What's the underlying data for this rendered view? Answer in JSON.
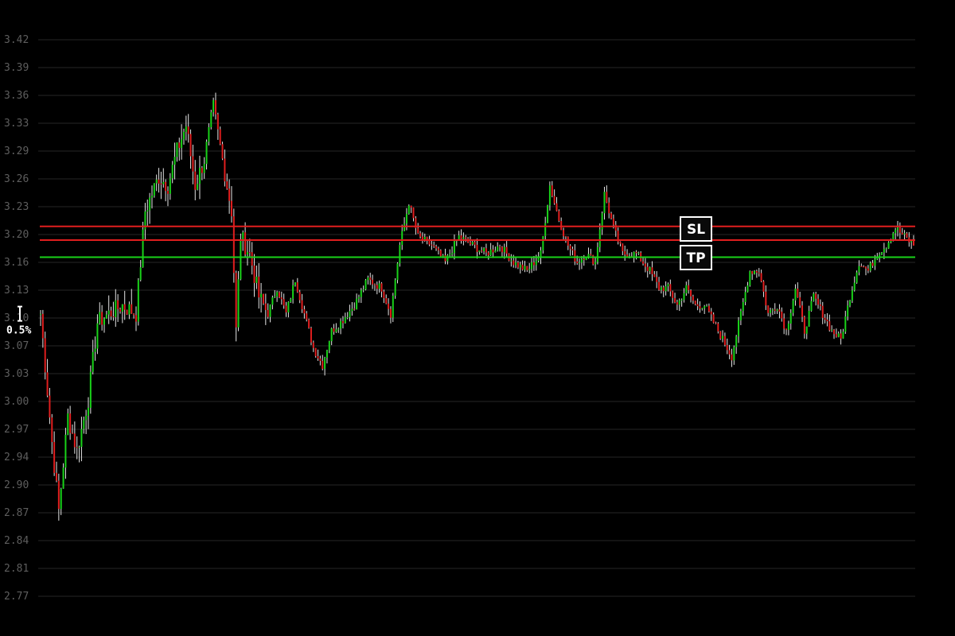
{
  "chart_data": {
    "type": "candlestick",
    "ylim": [
      2.75,
      3.44
    ],
    "y_ticks": [
      "3.42",
      "3.39",
      "3.36",
      "3.33",
      "3.29",
      "3.26",
      "3.23",
      "3.20",
      "3.16",
      "3.13",
      "3.10",
      "3.07",
      "3.03",
      "3.00",
      "2.97",
      "2.94",
      "2.90",
      "2.87",
      "2.84",
      "2.81",
      "2.77"
    ],
    "grid": true,
    "colors": {
      "up": "#19d219",
      "down": "#e01e1e",
      "wick": "#e6e6e6",
      "background": "#000000",
      "grid": "#262626"
    },
    "anchors": [
      {
        "i": 0,
        "v": 3.1
      },
      {
        "i": 5,
        "v": 2.95
      },
      {
        "i": 8,
        "v": 2.87
      },
      {
        "i": 12,
        "v": 2.98
      },
      {
        "i": 16,
        "v": 2.94
      },
      {
        "i": 21,
        "v": 3.0
      },
      {
        "i": 25,
        "v": 3.09
      },
      {
        "i": 30,
        "v": 3.1
      },
      {
        "i": 36,
        "v": 3.11
      },
      {
        "i": 42,
        "v": 3.1
      },
      {
        "i": 46,
        "v": 3.22
      },
      {
        "i": 52,
        "v": 3.26
      },
      {
        "i": 56,
        "v": 3.25
      },
      {
        "i": 60,
        "v": 3.29
      },
      {
        "i": 64,
        "v": 3.32
      },
      {
        "i": 68,
        "v": 3.25
      },
      {
        "i": 72,
        "v": 3.28
      },
      {
        "i": 76,
        "v": 3.34
      },
      {
        "i": 80,
        "v": 3.28
      },
      {
        "i": 84,
        "v": 3.22
      },
      {
        "i": 86,
        "v": 3.08
      },
      {
        "i": 88,
        "v": 3.19
      },
      {
        "i": 92,
        "v": 3.17
      },
      {
        "i": 96,
        "v": 3.12
      },
      {
        "i": 100,
        "v": 3.1
      },
      {
        "i": 104,
        "v": 3.13
      },
      {
        "i": 108,
        "v": 3.1
      },
      {
        "i": 112,
        "v": 3.14
      },
      {
        "i": 116,
        "v": 3.1
      },
      {
        "i": 120,
        "v": 3.06
      },
      {
        "i": 124,
        "v": 3.04
      },
      {
        "i": 128,
        "v": 3.08
      },
      {
        "i": 132,
        "v": 3.09
      },
      {
        "i": 138,
        "v": 3.11
      },
      {
        "i": 144,
        "v": 3.14
      },
      {
        "i": 150,
        "v": 3.13
      },
      {
        "i": 154,
        "v": 3.1
      },
      {
        "i": 158,
        "v": 3.18
      },
      {
        "i": 162,
        "v": 3.23
      },
      {
        "i": 166,
        "v": 3.19
      },
      {
        "i": 172,
        "v": 3.18
      },
      {
        "i": 178,
        "v": 3.16
      },
      {
        "i": 184,
        "v": 3.19
      },
      {
        "i": 190,
        "v": 3.18
      },
      {
        "i": 196,
        "v": 3.17
      },
      {
        "i": 202,
        "v": 3.18
      },
      {
        "i": 208,
        "v": 3.16
      },
      {
        "i": 214,
        "v": 3.15
      },
      {
        "i": 220,
        "v": 3.17
      },
      {
        "i": 224,
        "v": 3.25
      },
      {
        "i": 228,
        "v": 3.21
      },
      {
        "i": 232,
        "v": 3.18
      },
      {
        "i": 236,
        "v": 3.16
      },
      {
        "i": 240,
        "v": 3.17
      },
      {
        "i": 244,
        "v": 3.16
      },
      {
        "i": 248,
        "v": 3.24
      },
      {
        "i": 252,
        "v": 3.2
      },
      {
        "i": 256,
        "v": 3.17
      },
      {
        "i": 262,
        "v": 3.17
      },
      {
        "i": 268,
        "v": 3.15
      },
      {
        "i": 272,
        "v": 3.13
      },
      {
        "i": 276,
        "v": 3.13
      },
      {
        "i": 280,
        "v": 3.11
      },
      {
        "i": 284,
        "v": 3.13
      },
      {
        "i": 288,
        "v": 3.11
      },
      {
        "i": 292,
        "v": 3.11
      },
      {
        "i": 296,
        "v": 3.09
      },
      {
        "i": 300,
        "v": 3.07
      },
      {
        "i": 304,
        "v": 3.05
      },
      {
        "i": 308,
        "v": 3.1
      },
      {
        "i": 312,
        "v": 3.15
      },
      {
        "i": 316,
        "v": 3.15
      },
      {
        "i": 320,
        "v": 3.1
      },
      {
        "i": 324,
        "v": 3.11
      },
      {
        "i": 328,
        "v": 3.08
      },
      {
        "i": 332,
        "v": 3.13
      },
      {
        "i": 336,
        "v": 3.08
      },
      {
        "i": 340,
        "v": 3.12
      },
      {
        "i": 344,
        "v": 3.1
      },
      {
        "i": 348,
        "v": 3.08
      },
      {
        "i": 352,
        "v": 3.07
      },
      {
        "i": 356,
        "v": 3.12
      },
      {
        "i": 360,
        "v": 3.16
      },
      {
        "i": 364,
        "v": 3.15
      },
      {
        "i": 368,
        "v": 3.17
      },
      {
        "i": 372,
        "v": 3.18
      },
      {
        "i": 376,
        "v": 3.2
      },
      {
        "i": 380,
        "v": 3.19
      },
      {
        "i": 384,
        "v": 3.18
      }
    ],
    "horizontal_lines": [
      {
        "name": "upper-red-line",
        "value": 3.202,
        "color": "#e01e1e"
      },
      {
        "name": "sl-line",
        "value": 3.186,
        "color": "#e01e1e"
      },
      {
        "name": "tp-line",
        "value": 3.166,
        "color": "#19d219"
      }
    ],
    "badges": [
      {
        "name": "sl-badge",
        "label": "SL",
        "value": 3.186
      },
      {
        "name": "tp-badge",
        "label": "TP",
        "value": 3.166
      }
    ],
    "scale_marker": {
      "label": "0.5%",
      "value": 3.1
    }
  }
}
